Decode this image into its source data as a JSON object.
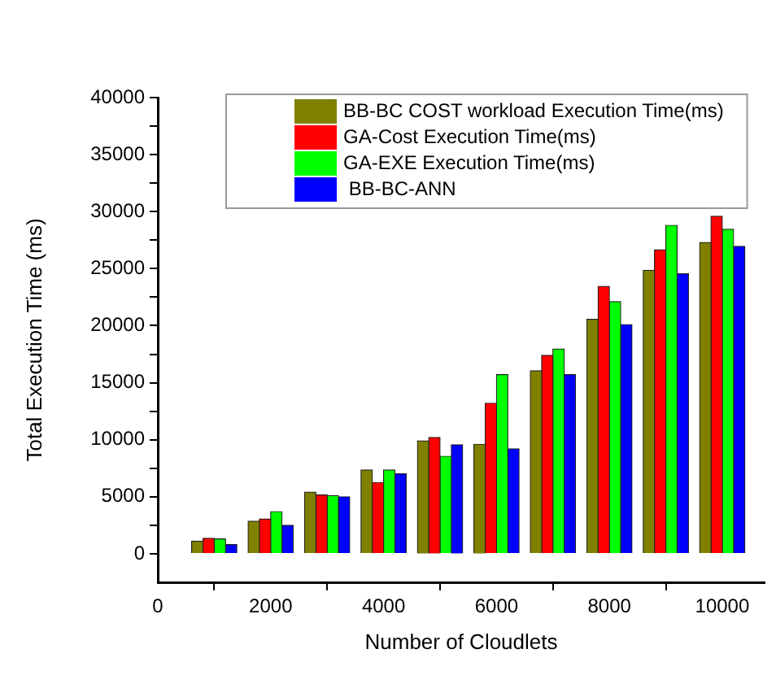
{
  "chart_data": {
    "type": "bar",
    "xlabel": "Number of Cloudlets",
    "ylabel": "Total Execution Time (ms)",
    "x": [
      1000,
      2000,
      3000,
      4000,
      5000,
      6000,
      7000,
      8000,
      9000,
      10000
    ],
    "series": [
      {
        "name": "BB-BC COST workload Execution Time(ms)",
        "color": "#808000",
        "values": [
          1100,
          2850,
          5400,
          7350,
          9900,
          9600,
          16050,
          20550,
          24850,
          27300
        ]
      },
      {
        "name": "GA-Cost Execution Time(ms)",
        "color": "#ff0000",
        "values": [
          1350,
          3050,
          5150,
          6250,
          10200,
          13200,
          17400,
          23450,
          26650,
          29600
        ]
      },
      {
        "name": "GA-EXE Execution Time(ms)",
        "color": "#00ff00",
        "values": [
          1300,
          3700,
          5100,
          7350,
          8550,
          15700,
          17950,
          22100,
          28800,
          28450
        ]
      },
      {
        "name": " BB-BC-ANN",
        "color": "#0000ff",
        "values": [
          800,
          2500,
          5000,
          7000,
          9550,
          9200,
          15700,
          20100,
          24550,
          26950
        ]
      }
    ],
    "xlim": [
      0,
      10750
    ],
    "xticks": [
      0,
      2000,
      4000,
      6000,
      8000,
      10000
    ],
    "ylim": [
      -2500,
      40000
    ],
    "yticks": [
      0,
      {
        "value": 2500,
        "label": null
      },
      5000,
      {
        "value": 7500,
        "label": null
      },
      10000,
      {
        "value": 12500,
        "label": null
      },
      15000,
      {
        "value": 17500,
        "label": null
      },
      20000,
      {
        "value": 22500,
        "label": null
      },
      25000,
      {
        "value": 27500,
        "label": null
      },
      30000,
      {
        "value": 32500,
        "label": null
      },
      35000,
      {
        "value": 37500,
        "label": null
      },
      40000
    ],
    "grid": false,
    "legend": "top"
  }
}
